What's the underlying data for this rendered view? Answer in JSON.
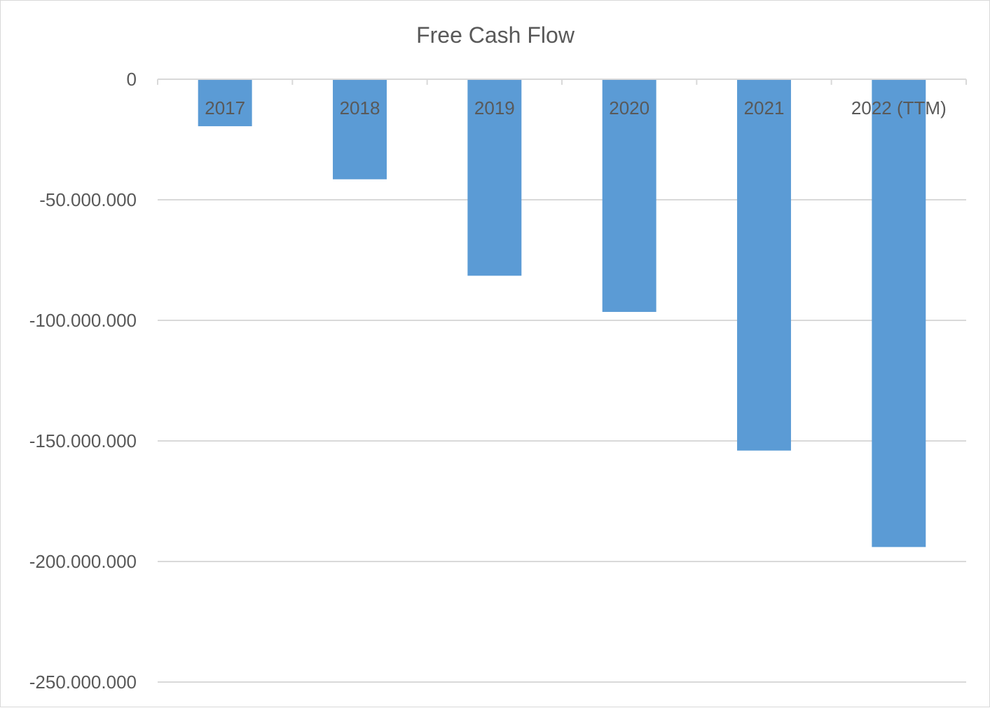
{
  "chart_data": {
    "type": "bar",
    "title": "Free Cash Flow",
    "xlabel": "",
    "ylabel": "",
    "categories": [
      "2017",
      "2018",
      "2019",
      "2020",
      "2021",
      "2022 (TTM)"
    ],
    "values": [
      -19500000,
      -41500000,
      -81500000,
      -96500000,
      -154000000,
      -194000000
    ],
    "ylim": [
      -250000000,
      0
    ],
    "yticks": [
      {
        "value": 0,
        "label": "0"
      },
      {
        "value": -50000000,
        "label": "-50.000.000"
      },
      {
        "value": -100000000,
        "label": "-100.000.000"
      },
      {
        "value": -150000000,
        "label": "-150.000.000"
      },
      {
        "value": -200000000,
        "label": "-200.000.000"
      },
      {
        "value": -250000000,
        "label": "-250.000.000"
      }
    ],
    "grid": true,
    "legend": "none",
    "category_labels_position": "below-axis-line-at-top",
    "colors": {
      "bar": "#5b9bd5",
      "gridline": "#d9d9d9",
      "text": "#595959",
      "border": "#d9d9d9"
    }
  }
}
